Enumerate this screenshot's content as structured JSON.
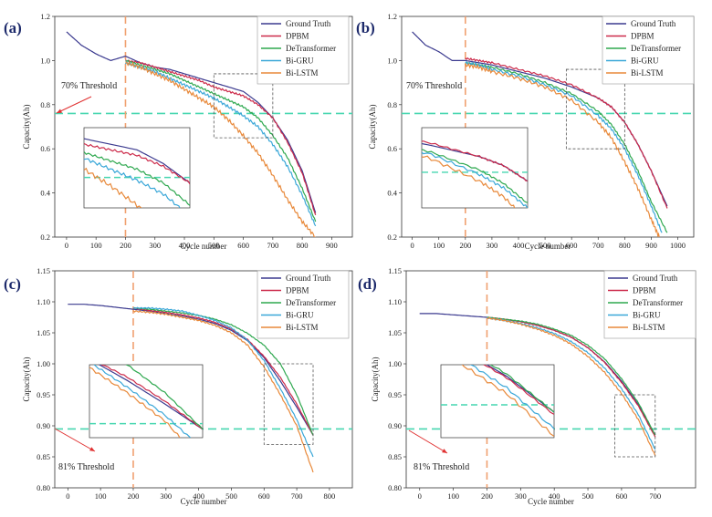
{
  "colors": {
    "ground_truth": "#3b3a8f",
    "dpbm": "#cc2a4a",
    "detransformer": "#2ea84f",
    "bigru": "#3aa7d8",
    "bilstm": "#e8893a",
    "threshold": "#47d6b0",
    "start_line": "#f0a070",
    "arrow": "#e03030",
    "box": "#555555"
  },
  "panels": [
    {
      "label": "(a)",
      "ylabel": "Capacity(Ah)",
      "xlabel": "Cycle number",
      "threshold_text": "70% Threshold",
      "threshold_value": 0.76,
      "start_cycle": 200,
      "xlim": [
        -40,
        970
      ],
      "ylim": [
        0.2,
        1.2
      ],
      "xticks": [
        0,
        100,
        200,
        300,
        400,
        500,
        600,
        700,
        800,
        900
      ],
      "yticks": [
        0.2,
        0.4,
        0.6,
        0.8,
        1.0,
        1.2
      ],
      "ytick_labels": [
        "0.2",
        "0.4",
        "0.6",
        "0.8",
        "1.0",
        "1.2"
      ],
      "legend": [
        "Ground Truth",
        "DPBM",
        "DeTransformer",
        "Bi-GRU",
        "Bi-LSTM"
      ],
      "zoom_region": {
        "x": [
          500,
          700
        ],
        "y": [
          0.65,
          0.94
        ]
      }
    },
    {
      "label": "(b)",
      "ylabel": "Capacity(Ah)",
      "xlabel": "Cycle number",
      "threshold_text": "70% Threshold",
      "threshold_value": 0.76,
      "start_cycle": 200,
      "xlim": [
        -40,
        1060
      ],
      "ylim": [
        0.2,
        1.2
      ],
      "xticks": [
        0,
        100,
        200,
        300,
        400,
        500,
        600,
        700,
        800,
        900,
        1000
      ],
      "yticks": [
        0.2,
        0.4,
        0.6,
        0.8,
        1.0,
        1.2
      ],
      "ytick_labels": [
        "0.2",
        "0.4",
        "0.6",
        "0.8",
        "1.0",
        "1.2"
      ],
      "legend": [
        "Ground Truth",
        "DPBM",
        "DeTransformer",
        "Bi-GRU",
        "Bi-LSTM"
      ],
      "zoom_region": {
        "x": [
          580,
          800
        ],
        "y": [
          0.6,
          0.96
        ]
      }
    },
    {
      "label": "(c)",
      "ylabel": "Capacity(Ah)",
      "xlabel": "Cycle number",
      "threshold_text": "81% Threshold",
      "threshold_value": 0.895,
      "start_cycle": 200,
      "xlim": [
        -40,
        870
      ],
      "ylim": [
        0.8,
        1.15
      ],
      "xticks": [
        0,
        100,
        200,
        300,
        400,
        500,
        600,
        700,
        800
      ],
      "yticks": [
        0.8,
        0.85,
        0.9,
        0.95,
        1.0,
        1.05,
        1.1,
        1.15
      ],
      "ytick_labels": [
        "0.80",
        "0.85",
        "0.90",
        "0.95",
        "1.00",
        "1.05",
        "1.10",
        "1.15"
      ],
      "legend": [
        "Ground Truth",
        "DPBM",
        "DeTransformer",
        "Bi-GRU",
        "Bi-LSTM"
      ],
      "zoom_region": {
        "x": [
          600,
          750
        ],
        "y": [
          0.87,
          1.0
        ]
      }
    },
    {
      "label": "(d)",
      "ylabel": "Capacity(Ah)",
      "xlabel": "Cycle number",
      "threshold_text": "81% Threshold",
      "threshold_value": 0.895,
      "start_cycle": 200,
      "xlim": [
        -40,
        820
      ],
      "ylim": [
        0.8,
        1.15
      ],
      "xticks": [
        0,
        100,
        200,
        300,
        400,
        500,
        600,
        700
      ],
      "yticks": [
        0.8,
        0.85,
        0.9,
        0.95,
        1.0,
        1.05,
        1.1,
        1.15
      ],
      "ytick_labels": [
        "0.80",
        "0.85",
        "0.90",
        "0.95",
        "1.00",
        "1.05",
        "1.10",
        "1.15"
      ],
      "legend": [
        "Ground Truth",
        "DPBM",
        "DeTransformer",
        "Bi-GRU",
        "Bi-LSTM"
      ],
      "zoom_region": {
        "x": [
          580,
          700
        ],
        "y": [
          0.85,
          0.95
        ]
      }
    }
  ],
  "chart_data": [
    {
      "type": "line",
      "label": "(a)",
      "x_range": [
        0,
        850
      ],
      "series": [
        {
          "name": "Ground Truth",
          "x": [
            0,
            50,
            100,
            150,
            200,
            250,
            300,
            350,
            400,
            450,
            500,
            550,
            600,
            650,
            700,
            750,
            800,
            845
          ],
          "y": [
            1.13,
            1.07,
            1.03,
            1.0,
            1.02,
            0.99,
            0.97,
            0.96,
            0.94,
            0.92,
            0.9,
            0.88,
            0.86,
            0.81,
            0.74,
            0.64,
            0.5,
            0.31
          ]
        },
        {
          "name": "DPBM",
          "x": [
            200,
            250,
            300,
            350,
            400,
            450,
            500,
            550,
            600,
            650,
            700,
            750,
            800,
            845
          ],
          "y": [
            1.0,
            0.99,
            0.97,
            0.95,
            0.93,
            0.91,
            0.88,
            0.86,
            0.84,
            0.8,
            0.74,
            0.63,
            0.49,
            0.3
          ]
        },
        {
          "name": "DeTransformer",
          "x": [
            200,
            250,
            300,
            350,
            400,
            450,
            500,
            550,
            600,
            650,
            700,
            750,
            800,
            845
          ],
          "y": [
            1.0,
            0.98,
            0.96,
            0.94,
            0.91,
            0.88,
            0.85,
            0.82,
            0.79,
            0.74,
            0.66,
            0.56,
            0.42,
            0.27
          ]
        },
        {
          "name": "Bi-GRU",
          "x": [
            200,
            250,
            300,
            350,
            400,
            450,
            500,
            550,
            600,
            650,
            700,
            750,
            800,
            845
          ],
          "y": [
            0.99,
            0.97,
            0.95,
            0.92,
            0.89,
            0.86,
            0.83,
            0.79,
            0.75,
            0.7,
            0.62,
            0.52,
            0.39,
            0.25
          ]
        },
        {
          "name": "Bi-LSTM",
          "x": [
            200,
            250,
            300,
            350,
            400,
            450,
            500,
            550,
            600,
            650,
            700,
            750,
            800,
            845
          ],
          "y": [
            0.99,
            0.97,
            0.94,
            0.91,
            0.87,
            0.83,
            0.79,
            0.73,
            0.66,
            0.58,
            0.48,
            0.37,
            0.27,
            0.2
          ]
        }
      ]
    },
    {
      "type": "line",
      "label": "(b)",
      "x_range": [
        0,
        960
      ],
      "series": [
        {
          "name": "Ground Truth",
          "x": [
            0,
            50,
            100,
            150,
            200,
            250,
            300,
            400,
            500,
            600,
            700,
            750,
            800,
            850,
            900,
            960
          ],
          "y": [
            1.13,
            1.07,
            1.04,
            1.0,
            1.0,
            0.99,
            0.98,
            0.95,
            0.92,
            0.88,
            0.83,
            0.79,
            0.72,
            0.62,
            0.5,
            0.34
          ]
        },
        {
          "name": "DPBM",
          "x": [
            200,
            250,
            300,
            400,
            500,
            600,
            700,
            750,
            800,
            850,
            900,
            960
          ],
          "y": [
            1.01,
            1.0,
            0.99,
            0.96,
            0.93,
            0.89,
            0.83,
            0.79,
            0.72,
            0.62,
            0.5,
            0.33
          ]
        },
        {
          "name": "DeTransformer",
          "x": [
            200,
            250,
            300,
            400,
            500,
            600,
            700,
            750,
            800,
            850,
            900,
            960
          ],
          "y": [
            0.99,
            0.98,
            0.97,
            0.94,
            0.9,
            0.85,
            0.77,
            0.71,
            0.62,
            0.5,
            0.36,
            0.22
          ]
        },
        {
          "name": "Bi-GRU",
          "x": [
            200,
            250,
            300,
            400,
            500,
            600,
            700,
            750,
            800,
            850,
            900,
            940
          ],
          "y": [
            0.99,
            0.98,
            0.96,
            0.93,
            0.89,
            0.84,
            0.75,
            0.69,
            0.6,
            0.48,
            0.34,
            0.22
          ]
        },
        {
          "name": "Bi-LSTM",
          "x": [
            200,
            250,
            300,
            400,
            500,
            600,
            700,
            750,
            800,
            850,
            900,
            930
          ],
          "y": [
            0.98,
            0.97,
            0.95,
            0.92,
            0.88,
            0.82,
            0.72,
            0.65,
            0.54,
            0.42,
            0.28,
            0.2
          ]
        }
      ]
    },
    {
      "type": "line",
      "label": "(c)",
      "x_range": [
        0,
        750
      ],
      "series": [
        {
          "name": "Ground Truth",
          "x": [
            0,
            50,
            100,
            150,
            200,
            250,
            300,
            350,
            400,
            450,
            500,
            550,
            600,
            650,
            700,
            750
          ],
          "y": [
            1.096,
            1.096,
            1.094,
            1.091,
            1.088,
            1.085,
            1.081,
            1.077,
            1.072,
            1.065,
            1.054,
            1.037,
            1.01,
            0.972,
            0.93,
            0.885
          ]
        },
        {
          "name": "DPBM",
          "x": [
            200,
            250,
            300,
            350,
            400,
            450,
            500,
            550,
            600,
            650,
            700,
            750
          ],
          "y": [
            1.09,
            1.086,
            1.083,
            1.079,
            1.074,
            1.067,
            1.056,
            1.039,
            1.012,
            0.978,
            0.935,
            0.885
          ]
        },
        {
          "name": "DeTransformer",
          "x": [
            200,
            250,
            300,
            350,
            400,
            450,
            500,
            550,
            600,
            650,
            700,
            750
          ],
          "y": [
            1.09,
            1.088,
            1.085,
            1.082,
            1.078,
            1.072,
            1.063,
            1.049,
            1.03,
            1.0,
            0.95,
            0.885
          ]
        },
        {
          "name": "Bi-GRU",
          "x": [
            200,
            250,
            300,
            350,
            400,
            450,
            500,
            550,
            600,
            650,
            700,
            750
          ],
          "y": [
            1.09,
            1.09,
            1.088,
            1.085,
            1.078,
            1.07,
            1.058,
            1.038,
            1.005,
            0.96,
            0.91,
            0.85
          ]
        },
        {
          "name": "Bi-LSTM",
          "x": [
            200,
            250,
            300,
            350,
            400,
            450,
            500,
            550,
            600,
            650,
            700,
            750
          ],
          "y": [
            1.085,
            1.083,
            1.08,
            1.075,
            1.07,
            1.062,
            1.05,
            1.03,
            0.995,
            0.95,
            0.9,
            0.825
          ]
        }
      ]
    },
    {
      "type": "line",
      "label": "(d)",
      "x_range": [
        0,
        700
      ],
      "series": [
        {
          "name": "Ground Truth",
          "x": [
            0,
            50,
            100,
            150,
            200,
            250,
            300,
            350,
            400,
            450,
            500,
            550,
            600,
            650,
            700
          ],
          "y": [
            1.081,
            1.081,
            1.079,
            1.077,
            1.075,
            1.072,
            1.068,
            1.062,
            1.054,
            1.043,
            1.026,
            1.003,
            0.972,
            0.934,
            0.885
          ]
        },
        {
          "name": "DPBM",
          "x": [
            200,
            250,
            300,
            350,
            400,
            450,
            500,
            550,
            600,
            650,
            700
          ],
          "y": [
            1.075,
            1.072,
            1.068,
            1.062,
            1.054,
            1.043,
            1.026,
            1.002,
            0.97,
            0.932,
            0.882
          ]
        },
        {
          "name": "DeTransformer",
          "x": [
            200,
            250,
            300,
            350,
            400,
            450,
            500,
            550,
            600,
            650,
            700
          ],
          "y": [
            1.075,
            1.072,
            1.069,
            1.064,
            1.056,
            1.046,
            1.03,
            1.008,
            0.976,
            0.937,
            0.885
          ]
        },
        {
          "name": "Bi-GRU",
          "x": [
            200,
            250,
            300,
            350,
            400,
            450,
            500,
            550,
            600,
            650,
            700
          ],
          "y": [
            1.074,
            1.07,
            1.065,
            1.058,
            1.049,
            1.036,
            1.018,
            0.993,
            0.96,
            0.918,
            0.862
          ]
        },
        {
          "name": "Bi-LSTM",
          "x": [
            200,
            250,
            300,
            350,
            400,
            450,
            500,
            550,
            600,
            650,
            700
          ],
          "y": [
            1.074,
            1.07,
            1.064,
            1.056,
            1.046,
            1.032,
            1.012,
            0.986,
            0.952,
            0.91,
            0.852
          ]
        }
      ]
    }
  ]
}
